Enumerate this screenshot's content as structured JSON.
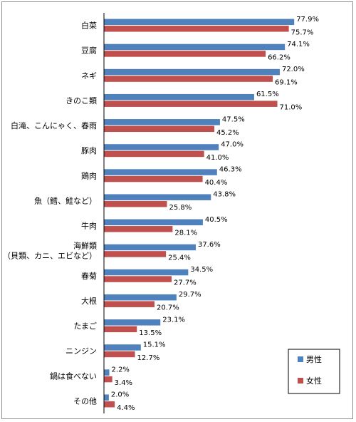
{
  "chart_data": {
    "type": "bar",
    "orientation": "horizontal",
    "categories": [
      [
        "白菜"
      ],
      [
        "豆腐"
      ],
      [
        "ネギ"
      ],
      [
        "きのこ類"
      ],
      [
        "白滝、こんにゃく、春雨"
      ],
      [
        "豚肉"
      ],
      [
        "鶏肉"
      ],
      [
        "魚（鱈、鮭など）"
      ],
      [
        "牛肉"
      ],
      [
        "海鮮類",
        "（貝類、カニ、エビなど）"
      ],
      [
        "春菊"
      ],
      [
        "大根"
      ],
      [
        "たまご"
      ],
      [
        "ニンジン"
      ],
      [
        "鍋は食べない"
      ],
      [
        "その他"
      ]
    ],
    "series": [
      {
        "name": "男性",
        "color": "#4f81bd",
        "values": [
          77.9,
          74.1,
          72.0,
          61.5,
          47.5,
          47.0,
          46.3,
          43.8,
          40.5,
          37.6,
          34.5,
          29.7,
          23.1,
          15.1,
          2.2,
          2.0
        ]
      },
      {
        "name": "女性",
        "color": "#c0504d",
        "values": [
          75.7,
          66.2,
          69.1,
          71.0,
          45.2,
          41.0,
          40.4,
          25.8,
          28.1,
          25.4,
          27.7,
          20.7,
          13.5,
          12.7,
          3.4,
          4.4
        ]
      }
    ],
    "value_labels": {
      "男性": [
        "77.9%",
        "74.1%",
        "72.0%",
        "61.5%",
        "47.5%",
        "47.0%",
        "46.3%",
        "43.8%",
        "40.5%",
        "37.6%",
        "34.5%",
        "29.7%",
        "23.1%",
        "15.1%",
        "2.2%",
        "2.0%"
      ],
      "女性": [
        "75.7%",
        "66.2%",
        "69.1%",
        "71.0%",
        "45.2%",
        "41.0%",
        "40.4%",
        "25.8%",
        "28.1%",
        "25.4%",
        "27.7%",
        "20.7%",
        "13.5%",
        "12.7%",
        "3.4%",
        "4.4%"
      ]
    },
    "xlim": [
      0,
      100
    ],
    "grid": false,
    "legend_position": "bottom-right",
    "title": "",
    "xlabel": "",
    "ylabel": ""
  },
  "legend": {
    "items": [
      {
        "label": "男性",
        "color": "#4f81bd"
      },
      {
        "label": "女性",
        "color": "#c0504d"
      }
    ]
  }
}
